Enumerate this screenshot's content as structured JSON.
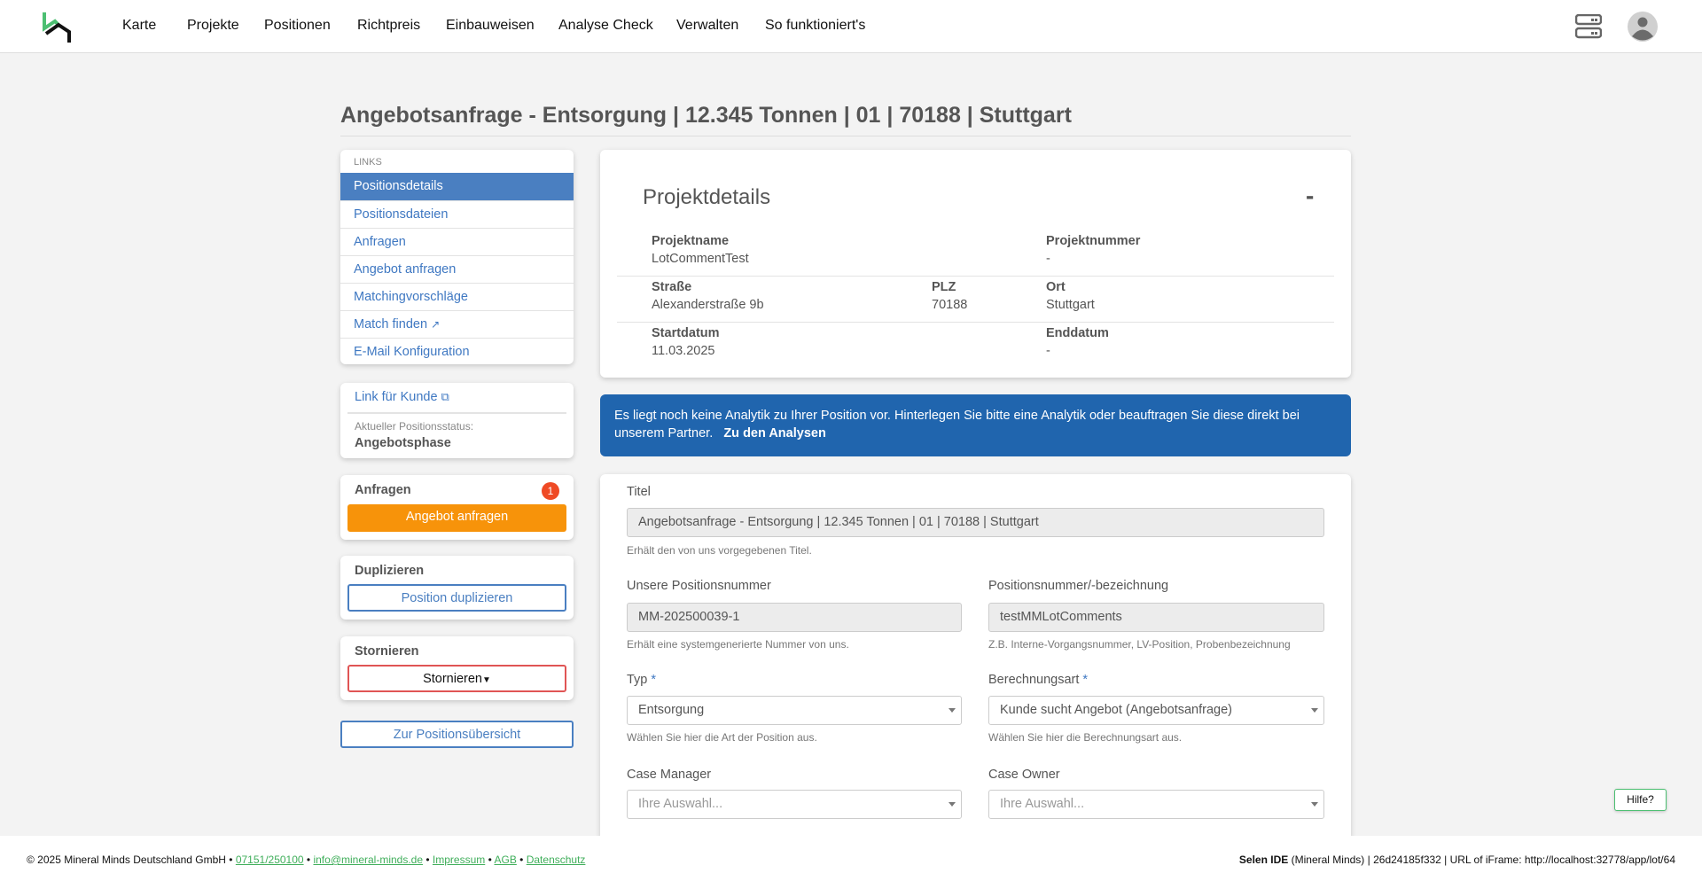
{
  "nav": {
    "items": [
      "Karte",
      "Projekte",
      "Positionen",
      "Richtpreis",
      "Einbauweisen",
      "Analyse Check",
      "Verwalten",
      "So funktioniert's"
    ],
    "logo_text": "MM"
  },
  "page": {
    "title": "Angebotsanfrage - Entsorgung | 12.345 Tonnen | 01 | 70188 | Stuttgart"
  },
  "sidebar": {
    "links_header": "LINKS",
    "links": [
      "Positionsdetails",
      "Positionsdateien",
      "Anfragen",
      "Angebot anfragen",
      "Matchingvorschläge",
      "Match finden",
      "E-Mail Konfiguration"
    ],
    "customer_link": "Link für Kunde",
    "status_label": "Aktueller Positionsstatus:",
    "status_value": "Angebotsphase",
    "requests_title": "Anfragen",
    "requests_badge": "1",
    "request_button": "Angebot anfragen",
    "duplicate_title": "Duplizieren",
    "duplicate_button": "Position duplizieren",
    "cancel_title": "Stornieren",
    "cancel_button": "Stornieren",
    "overview_button": "Zur Positionsübersicht"
  },
  "project": {
    "heading": "Projektdetails",
    "collapse": "-",
    "name_label": "Projektname",
    "name": "LotCommentTest",
    "number_label": "Projektnummer",
    "number": "-",
    "street_label": "Straße",
    "street": "Alexanderstraße 9b",
    "plz_label": "PLZ",
    "plz": "70188",
    "city_label": "Ort",
    "city": "Stuttgart",
    "start_label": "Startdatum",
    "start": "11.03.2025",
    "end_label": "Enddatum",
    "end": "-"
  },
  "alert": {
    "text": "Es liegt noch keine Analytik zu Ihrer Position vor. Hinterlegen Sie bitte eine Analytik oder beauftragen Sie diese direkt bei unserem Partner.",
    "link": "Zu den Analysen",
    "color": "#2065ae"
  },
  "form": {
    "title_label": "Titel",
    "title_value": "Angebotsanfrage - Entsorgung | 12.345 Tonnen | 01 | 70188 | Stuttgart",
    "title_help": "Erhält den von uns vorgegebenen Titel.",
    "our_number_label": "Unsere Positionsnummer",
    "our_number": "MM-202500039-1",
    "our_number_help": "Erhält eine systemgenerierte Nummer von uns.",
    "pos_number_label": "Positionsnummer/-bezeichnung",
    "pos_number": "testMMLotComments",
    "pos_number_help": "Z.B. Interne-Vorgangsnummer, LV-Position, Probenbezeichnung",
    "type_label": "Typ",
    "type_value": "Entsorgung",
    "type_help": "Wählen Sie hier die Art der Position aus.",
    "calc_label": "Berechnungsart",
    "calc_value": "Kunde sucht Angebot (Angebotsanfrage)",
    "calc_help": "Wählen Sie hier die Berechnungsart aus.",
    "required_mark": "*",
    "case_manager_label": "Case Manager",
    "case_manager_placeholder": "Ihre Auswahl...",
    "case_owner_label": "Case Owner",
    "case_owner_placeholder": "Ihre Auswahl..."
  },
  "help_button": "Hilfe?",
  "footer": {
    "copyright": "© 2025 Mineral Minds Deutschland GmbH •",
    "phone": "07151/250100",
    "email": "info@mineral-minds.de",
    "impressum": "Impressum",
    "agb": "AGB",
    "datenschutz": "Datenschutz",
    "sep": "•",
    "right_bold": "Selen IDE",
    "right_text": "(Mineral Minds) | 26d24185f332 | URL of iFrame: http://localhost:32778/app/lot/64"
  },
  "colors": {
    "primary": "#4a7fc1",
    "orange": "#f7930a",
    "danger": "#e05555",
    "badge": "#ef4a25",
    "logo_green": "#4cbf72"
  }
}
